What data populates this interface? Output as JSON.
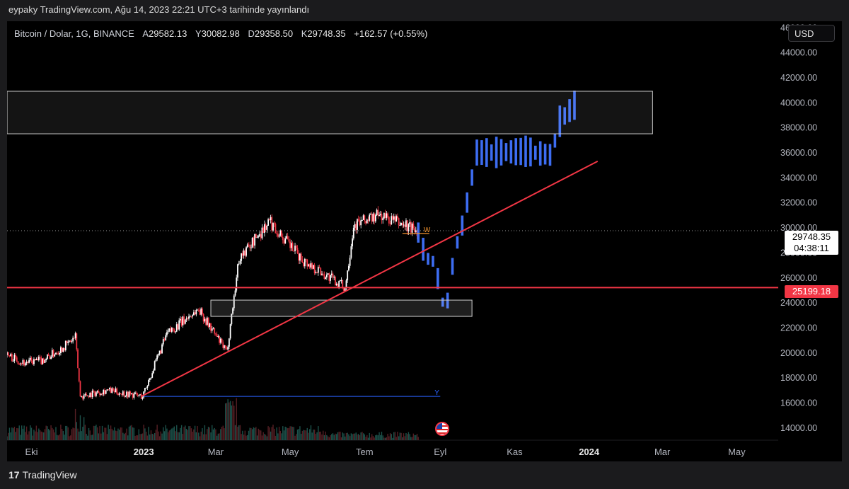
{
  "header": {
    "published": "eypaky TradingView.com, Ağu 14, 2023 22:21 UTC+3 tarihinde yayınlandı"
  },
  "symbol": {
    "name": "Bitcoin / Dolar, 1G, BINANCE",
    "open_label": "A",
    "open": "29582.13",
    "high_label": "Y",
    "high": "30082.98",
    "low_label": "D",
    "low": "29358.50",
    "close_label": "K",
    "close": "29748.35",
    "change": "+162.57 (+0.55%)"
  },
  "currency": "USD",
  "price_tag": {
    "price": "29748.35",
    "countdown": "04:38:11"
  },
  "level_tag": "25199.18",
  "footer": {
    "logo_mark": "17",
    "logo_text": "TradingView"
  },
  "colors": {
    "up": "#ffffff",
    "down": "#f23645",
    "projection": "#3d6df2",
    "trendline": "#f23645",
    "background": "#000000"
  },
  "chart_data": {
    "type": "candlestick",
    "x_ticks": [
      {
        "label": "Eki",
        "date": "2022-10-01"
      },
      {
        "label": "2023",
        "date": "2023-01-01",
        "bold": true
      },
      {
        "label": "Mar",
        "date": "2023-03-01"
      },
      {
        "label": "May",
        "date": "2023-05-01"
      },
      {
        "label": "Tem",
        "date": "2023-07-01"
      },
      {
        "label": "Eyl",
        "date": "2023-09-01"
      },
      {
        "label": "Kas",
        "date": "2023-11-01"
      },
      {
        "label": "2024",
        "date": "2024-01-01",
        "bold": true
      },
      {
        "label": "Mar",
        "date": "2024-03-01"
      },
      {
        "label": "May",
        "date": "2024-05-01"
      }
    ],
    "y_ticks": [
      "46000.00",
      "44000.00",
      "42000.00",
      "40000.00",
      "38000.00",
      "36000.00",
      "34000.00",
      "32000.00",
      "30000.00",
      "28000.00",
      "26000.00",
      "24000.00",
      "22000.00",
      "20000.00",
      "18000.00",
      "16000.00",
      "14000.00"
    ],
    "ylim": [
      13000,
      46500
    ],
    "xlim": [
      "2022-09-11",
      "2024-06-04"
    ],
    "price_path": [
      {
        "date": "2022-09-11",
        "price": 19800
      },
      {
        "date": "2022-09-25",
        "price": 19200
      },
      {
        "date": "2022-10-10",
        "price": 19400
      },
      {
        "date": "2022-10-25",
        "price": 20300
      },
      {
        "date": "2022-11-06",
        "price": 21200
      },
      {
        "date": "2022-11-10",
        "price": 16500
      },
      {
        "date": "2022-12-01",
        "price": 17000
      },
      {
        "date": "2022-12-31",
        "price": 16500
      },
      {
        "date": "2023-01-20",
        "price": 21500
      },
      {
        "date": "2023-02-15",
        "price": 23500
      },
      {
        "date": "2023-03-10",
        "price": 20000
      },
      {
        "date": "2023-03-20",
        "price": 27500
      },
      {
        "date": "2023-04-14",
        "price": 30500
      },
      {
        "date": "2023-05-10",
        "price": 27500
      },
      {
        "date": "2023-06-15",
        "price": 25200
      },
      {
        "date": "2023-06-22",
        "price": 30200
      },
      {
        "date": "2023-07-13",
        "price": 31000
      },
      {
        "date": "2023-08-14",
        "price": 29750
      }
    ],
    "projection_path": [
      {
        "date": "2023-08-14",
        "price": 29600
      },
      {
        "date": "2023-08-20",
        "price": 27600
      },
      {
        "date": "2023-08-28",
        "price": 27200
      },
      {
        "date": "2023-09-02",
        "price": 24000
      },
      {
        "date": "2023-09-08",
        "price": 24200
      },
      {
        "date": "2023-09-12",
        "price": 27800
      },
      {
        "date": "2023-09-20",
        "price": 30500
      },
      {
        "date": "2023-10-01",
        "price": 36000
      },
      {
        "date": "2023-10-15",
        "price": 36000
      },
      {
        "date": "2023-11-10",
        "price": 36100
      },
      {
        "date": "2023-12-01",
        "price": 35800
      },
      {
        "date": "2023-12-08",
        "price": 38500
      },
      {
        "date": "2023-12-22",
        "price": 40000
      }
    ],
    "volume_range": [
      0,
      1
    ],
    "annotations": {
      "trendline": [
        {
          "date": "2022-12-30",
          "price": 16500
        },
        {
          "date": "2024-01-08",
          "price": 35300
        }
      ],
      "horizontal_level": 25199.18,
      "upper_zone": {
        "from": "2022-09-11",
        "to": "2024-02-22",
        "low": 37500,
        "high": 40900
      },
      "lower_zone": {
        "from": "2023-02-25",
        "to": "2023-09-27",
        "low": 22900,
        "high": 24200
      },
      "blue_line": {
        "from": "2023-01-01",
        "to": "2023-09-01",
        "price": 16500,
        "label": "Y"
      },
      "orange_line": {
        "from": "2023-08-01",
        "to": "2023-08-23",
        "price": 29700,
        "label": "W"
      },
      "current_price": 29748.35
    }
  }
}
